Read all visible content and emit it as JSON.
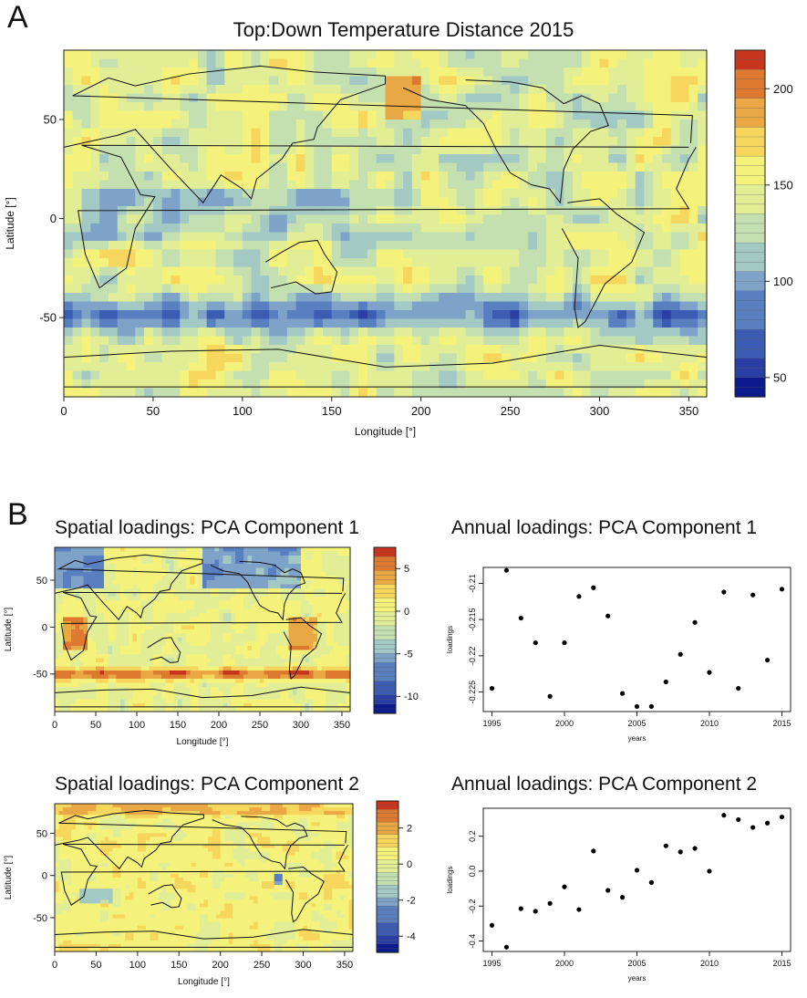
{
  "panel_labels": {
    "a": "A",
    "b": "B"
  },
  "palette": [
    "#0b1a8c",
    "#2a3fa3",
    "#3b5cb2",
    "#5a7fc0",
    "#7fa3c8",
    "#a3c9c4",
    "#c4e0b0",
    "#e2ee96",
    "#f4f27a",
    "#f6d65c",
    "#eaa844",
    "#de7a30",
    "#c8351e"
  ],
  "chart_data": [
    {
      "id": "A",
      "type": "heatmap",
      "title": "Top:Down Temperature Distance 2015",
      "xlabel": "Longitude [°]",
      "ylabel": "Latitude [°]",
      "xlim": [
        0,
        360
      ],
      "ylim": [
        -90,
        85
      ],
      "xticks": [
        0,
        50,
        100,
        150,
        200,
        250,
        300,
        350
      ],
      "yticks": [
        -50,
        0,
        50
      ],
      "colorbar": {
        "min": 40,
        "max": 220,
        "ticks": [
          50,
          100,
          150,
          200
        ]
      }
    },
    {
      "id": "B1",
      "type": "heatmap",
      "title": "Spatial loadings: PCA Component 1",
      "xlabel": "Longitude [°]",
      "ylabel": "Latitude [°]",
      "xlim": [
        0,
        360
      ],
      "ylim": [
        -90,
        85
      ],
      "xticks": [
        0,
        50,
        100,
        150,
        200,
        250,
        300,
        350
      ],
      "yticks": [
        -50,
        0,
        50
      ],
      "colorbar": {
        "min": -12,
        "max": 7.5,
        "ticks": [
          -10,
          -5,
          0,
          5
        ]
      }
    },
    {
      "id": "B2",
      "type": "scatter",
      "title": "Annual loadings: PCA Component 1",
      "xlabel": "years",
      "ylabel": "loadings",
      "xlim": [
        1994.4,
        2015.6
      ],
      "ylim": [
        -0.2277,
        -0.2078
      ],
      "xticks": [
        1995,
        2000,
        2005,
        2010,
        2015
      ],
      "yticks": [
        -0.225,
        -0.22,
        -0.215,
        -0.21
      ],
      "x": [
        1995,
        1996,
        1997,
        1998,
        1999,
        2000,
        2001,
        2002,
        2003,
        2004,
        2005,
        2006,
        2007,
        2008,
        2009,
        2010,
        2011,
        2012,
        2013,
        2014,
        2015
      ],
      "y": [
        -0.2245,
        -0.2082,
        -0.2148,
        -0.2182,
        -0.2256,
        -0.2182,
        -0.2118,
        -0.2106,
        -0.2145,
        -0.2252,
        -0.227,
        -0.227,
        -0.2236,
        -0.2198,
        -0.2154,
        -0.2223,
        -0.2112,
        -0.2245,
        -0.2116,
        -0.2206,
        -0.2108
      ]
    },
    {
      "id": "B3",
      "type": "heatmap",
      "title": "Spatial loadings: PCA Component 2",
      "xlabel": "Longitude [°]",
      "ylabel": "Latitude [°]",
      "xlim": [
        0,
        360
      ],
      "ylim": [
        -90,
        85
      ],
      "xticks": [
        0,
        50,
        100,
        150,
        200,
        250,
        300,
        350
      ],
      "yticks": [
        -50,
        0,
        50
      ],
      "colorbar": {
        "min": -4.9,
        "max": 3.5,
        "ticks": [
          -4,
          -2,
          0,
          2
        ]
      }
    },
    {
      "id": "B4",
      "type": "scatter",
      "title": "Annual loadings: PCA Component 2",
      "xlabel": "years",
      "ylabel": "loadings",
      "xlim": [
        1994.4,
        2015.6
      ],
      "ylim": [
        -0.46,
        0.36
      ],
      "xticks": [
        1995,
        2000,
        2005,
        2010,
        2015
      ],
      "yticks": [
        -0.4,
        -0.2,
        0.0,
        0.2
      ],
      "x": [
        1995,
        1996,
        1997,
        1998,
        1999,
        2000,
        2001,
        2002,
        2003,
        2004,
        2005,
        2006,
        2007,
        2008,
        2009,
        2010,
        2011,
        2012,
        2013,
        2014,
        2015
      ],
      "y": [
        -0.31,
        -0.435,
        -0.215,
        -0.23,
        -0.185,
        -0.09,
        -0.22,
        0.115,
        -0.11,
        -0.15,
        0.005,
        -0.065,
        0.145,
        0.11,
        0.13,
        0.0,
        0.32,
        0.295,
        0.25,
        0.275,
        0.31
      ]
    }
  ]
}
